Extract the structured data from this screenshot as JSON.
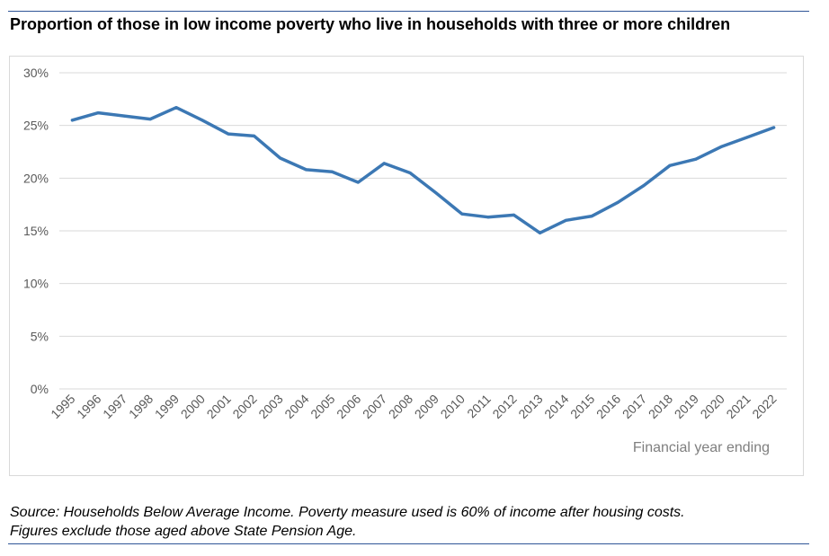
{
  "title": "Proportion of those in low income poverty who live in households with three or more children",
  "source_lines": [
    "Source: Households Below Average Income. Poverty measure used is 60% of income after housing costs.",
    "Figures exclude those aged above State Pension Age."
  ],
  "chart_data": {
    "type": "line",
    "title": "Proportion of those in low income poverty who live in households with three or more children",
    "xlabel": "Financial year ending",
    "ylabel": "",
    "ylim": [
      0,
      30
    ],
    "yticks": [
      "0%",
      "5%",
      "10%",
      "15%",
      "20%",
      "25%",
      "30%"
    ],
    "y_tick_values": [
      0,
      5,
      10,
      15,
      20,
      25,
      30
    ],
    "grid": true,
    "legend": "none",
    "categories": [
      "1995",
      "1996",
      "1997",
      "1998",
      "1999",
      "2000",
      "2001",
      "2002",
      "2003",
      "2004",
      "2005",
      "2006",
      "2007",
      "2008",
      "2009",
      "2010",
      "2011",
      "2012",
      "2013",
      "2014",
      "2015",
      "2016",
      "2017",
      "2018",
      "2019",
      "2020",
      "2021",
      "2022"
    ],
    "series": [
      {
        "color": "#3c78b4",
        "values": [
          25.5,
          26.2,
          25.9,
          25.6,
          26.7,
          25.5,
          24.2,
          24.0,
          21.9,
          20.8,
          20.6,
          19.6,
          21.4,
          20.5,
          18.6,
          16.6,
          16.3,
          16.5,
          14.8,
          16.0,
          16.4,
          17.7,
          19.3,
          21.2,
          21.8,
          23.0,
          23.9,
          24.8
        ]
      }
    ],
    "gridline_color": "#d9d9d9",
    "tick_label_color": "#595959"
  }
}
